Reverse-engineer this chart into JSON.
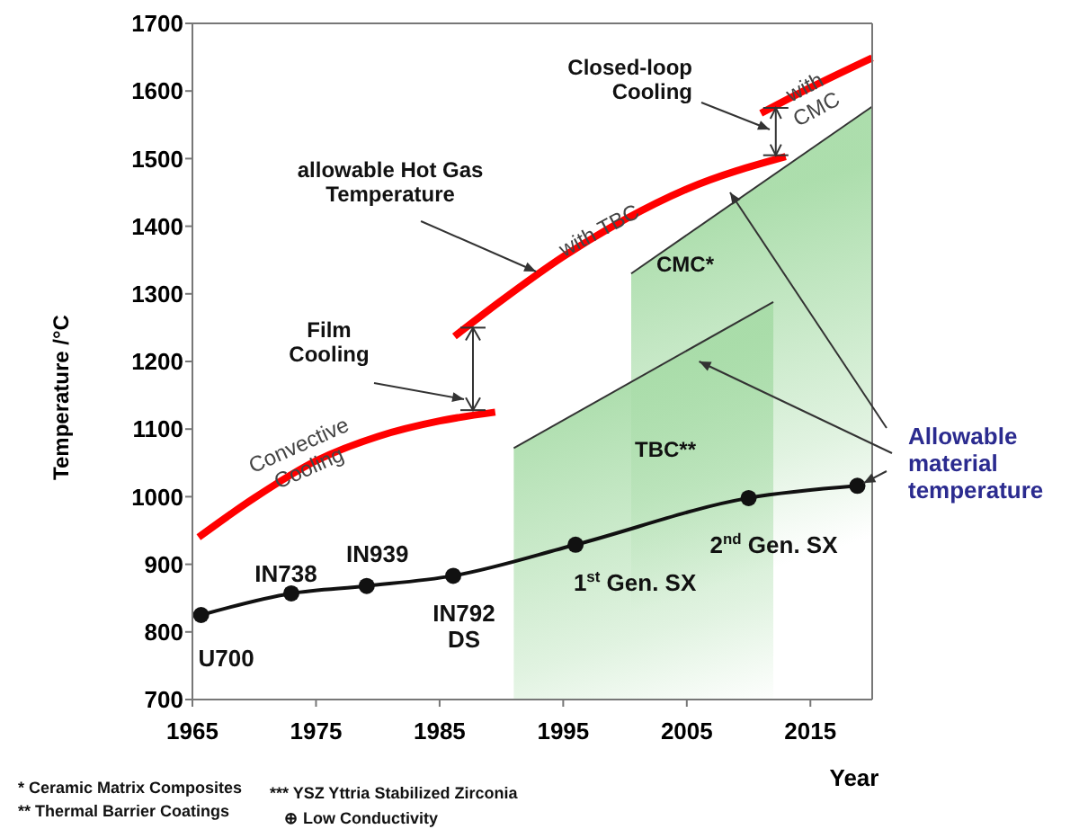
{
  "chart_data": {
    "type": "line",
    "xlabel": "Year",
    "ylabel": "Temperature /°C",
    "xlim": [
      1965,
      2020
    ],
    "ylim": [
      700,
      1700
    ],
    "xticks": [
      1965,
      1975,
      1985,
      1995,
      2005,
      2015
    ],
    "yticks": [
      700,
      800,
      900,
      1000,
      1100,
      1200,
      1300,
      1400,
      1500,
      1600,
      1700
    ],
    "grid": false,
    "series": [
      {
        "type": "area",
        "color": "#a8dca8",
        "x": [
          2000.5,
          2020
        ],
        "values": [
          1330,
          1577
        ]
      },
      {
        "type": "area",
        "color": "#a8dca8",
        "x": [
          1991,
          2012
        ],
        "values": [
          1072,
          1288
        ]
      },
      {
        "color": "#ff0000",
        "x": [
          1965.5,
          1970,
          1975,
          1980,
          1985,
          1989.5
        ],
        "values": [
          940,
          998,
          1053,
          1089,
          1112,
          1125
        ]
      },
      {
        "color": "#ff0000",
        "x": [
          1986.2,
          1990,
          1995,
          2000,
          2005,
          2013
        ],
        "values": [
          1237,
          1290,
          1355,
          1410,
          1455,
          1503
        ]
      },
      {
        "color": "#ff0000",
        "x": [
          2011,
          2015,
          2020
        ],
        "values": [
          1567,
          1605,
          1649
        ]
      },
      {
        "color": "#111111",
        "marker": "circle",
        "x": [
          1965.7,
          1973,
          1979.1,
          1986.1,
          1996,
          2010,
          2018.8
        ],
        "values": [
          825,
          857,
          868,
          883,
          929,
          998,
          1016
        ]
      }
    ],
    "annotations": [
      {
        "text": "allowable Hot Gas Temperature",
        "x": 1992.8,
        "y": 1333
      },
      "Film Cooling",
      "Closed-loop Cooling",
      "with TBC",
      {
        "text": "with CMC",
        "x": 2015,
        "y": 1590
      },
      {
        "text": "Convective Cooling",
        "x": 1974,
        "y": 1060
      },
      "CMC*",
      "TBC**",
      {
        "text": "U700",
        "x": 1965.7,
        "y": 825
      },
      {
        "text": "IN738",
        "x": 1973,
        "y": 857
      },
      {
        "text": "IN939",
        "x": 1979.1,
        "y": 868
      },
      {
        "text": "IN792 DS",
        "x": 1986.1,
        "y": 883
      },
      {
        "text": "1$^{st}$ Gen. SX",
        "x": 1996,
        "y": 929
      },
      {
        "text": "2$^{nd}$ Gen. SX",
        "x": 2010,
        "y": 998
      },
      "Allowable material temperature",
      "* Ceramic Matrix Composites",
      "*** YSZ Yttria Stabilized Zirconia",
      "** Thermal Barrier Coatings",
      "⊕ Low Conductivity"
    ]
  }
}
